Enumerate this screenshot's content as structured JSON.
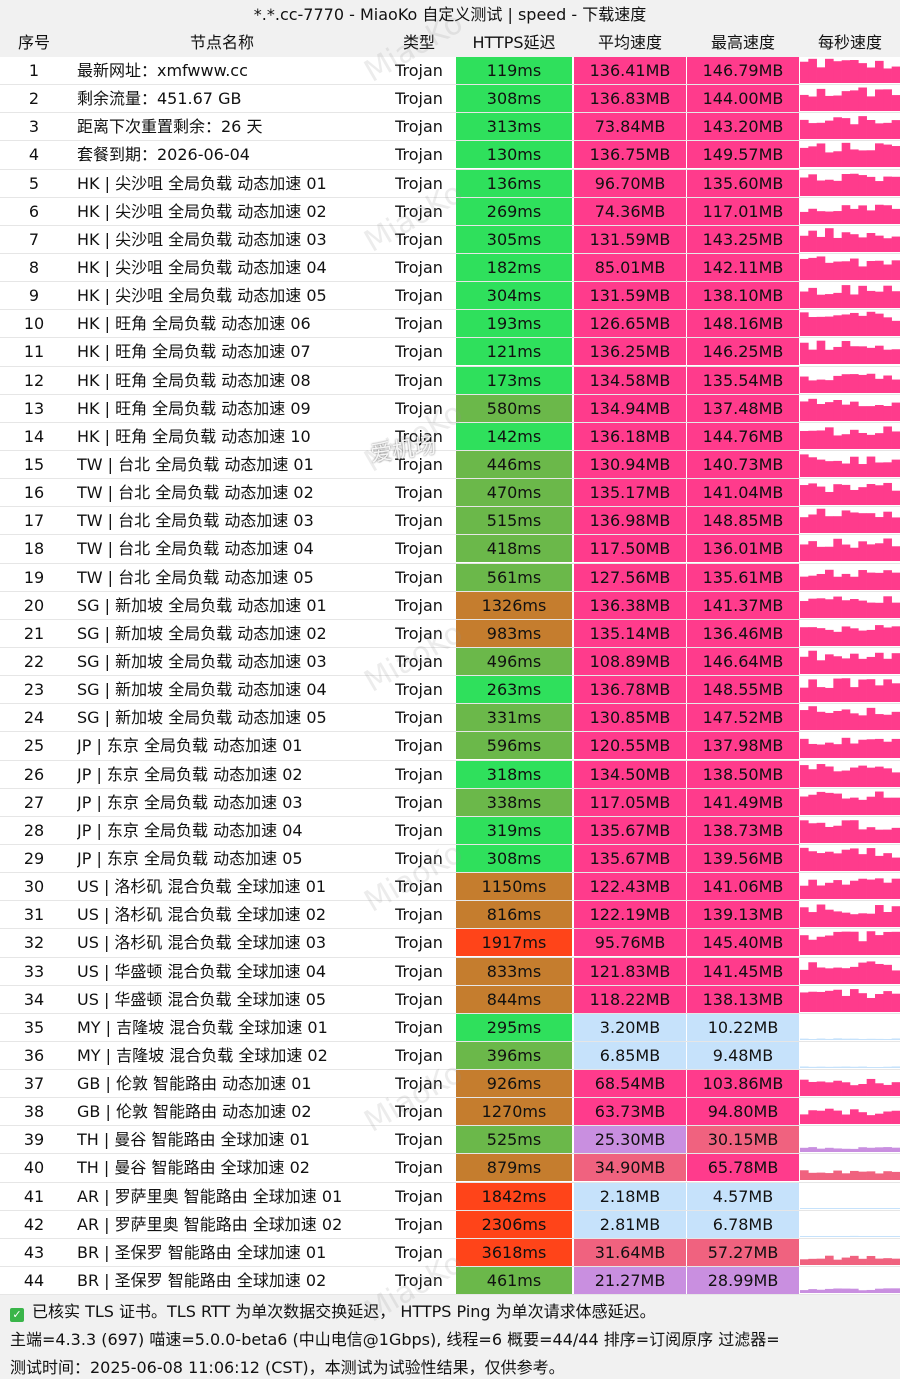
{
  "title": "*.*.cc-7770 - MiaoKo 自定义测试 | speed - 下载速度",
  "headers": {
    "idx": "序号",
    "name": "节点名称",
    "type": "类型",
    "latency": "HTTPS延迟",
    "avg": "平均速度",
    "max": "最高速度",
    "per_sec": "每秒速度"
  },
  "colors": {
    "speed_high": "#ff3b8c",
    "speed_mid": "#f0627f",
    "speed_low": "#c6e2fb",
    "speed_purple": "#c98fe0",
    "lat_good": "#2fe05c",
    "lat_mid": "#6bb84a",
    "lat_orange": "#c57d2e",
    "lat_bad": "#ff4419"
  },
  "rows": [
    {
      "idx": "1",
      "name": "最新网址：xmfwww.cc",
      "type": "Trojan",
      "latency": "119ms",
      "avg": "136.41MB",
      "max": "146.79MB"
    },
    {
      "idx": "2",
      "name": "剩余流量：451.67 GB",
      "type": "Trojan",
      "latency": "308ms",
      "avg": "136.83MB",
      "max": "144.00MB"
    },
    {
      "idx": "3",
      "name": "距离下次重置剩余：26 天",
      "type": "Trojan",
      "latency": "313ms",
      "avg": "73.84MB",
      "max": "143.20MB"
    },
    {
      "idx": "4",
      "name": "套餐到期：2026-06-04",
      "type": "Trojan",
      "latency": "130ms",
      "avg": "136.75MB",
      "max": "149.57MB"
    },
    {
      "idx": "5",
      "name": "HK | 尖沙咀 全局负载 动态加速 01",
      "type": "Trojan",
      "latency": "136ms",
      "avg": "96.70MB",
      "max": "135.60MB"
    },
    {
      "idx": "6",
      "name": "HK | 尖沙咀 全局负载 动态加速 02",
      "type": "Trojan",
      "latency": "269ms",
      "avg": "74.36MB",
      "max": "117.01MB"
    },
    {
      "idx": "7",
      "name": "HK | 尖沙咀 全局负载 动态加速 03",
      "type": "Trojan",
      "latency": "305ms",
      "avg": "131.59MB",
      "max": "143.25MB"
    },
    {
      "idx": "8",
      "name": "HK | 尖沙咀 全局负载 动态加速 04",
      "type": "Trojan",
      "latency": "182ms",
      "avg": "85.01MB",
      "max": "142.11MB"
    },
    {
      "idx": "9",
      "name": "HK | 尖沙咀 全局负载 动态加速 05",
      "type": "Trojan",
      "latency": "304ms",
      "avg": "131.59MB",
      "max": "138.10MB"
    },
    {
      "idx": "10",
      "name": "HK | 旺角 全局负载 动态加速 06",
      "type": "Trojan",
      "latency": "193ms",
      "avg": "126.65MB",
      "max": "148.16MB"
    },
    {
      "idx": "11",
      "name": "HK | 旺角 全局负载 动态加速 07",
      "type": "Trojan",
      "latency": "121ms",
      "avg": "136.25MB",
      "max": "146.25MB"
    },
    {
      "idx": "12",
      "name": "HK | 旺角 全局负载 动态加速 08",
      "type": "Trojan",
      "latency": "173ms",
      "avg": "134.58MB",
      "max": "135.54MB"
    },
    {
      "idx": "13",
      "name": "HK | 旺角 全局负载 动态加速 09",
      "type": "Trojan",
      "latency": "580ms",
      "avg": "134.94MB",
      "max": "137.48MB"
    },
    {
      "idx": "14",
      "name": "HK | 旺角 全局负载 动态加速 10",
      "type": "Trojan",
      "latency": "142ms",
      "avg": "136.18MB",
      "max": "144.76MB"
    },
    {
      "idx": "15",
      "name": "TW | 台北 全局负载 动态加速 01",
      "type": "Trojan",
      "latency": "446ms",
      "avg": "130.94MB",
      "max": "140.73MB"
    },
    {
      "idx": "16",
      "name": "TW | 台北 全局负载 动态加速 02",
      "type": "Trojan",
      "latency": "470ms",
      "avg": "135.17MB",
      "max": "141.04MB"
    },
    {
      "idx": "17",
      "name": "TW | 台北 全局负载 动态加速 03",
      "type": "Trojan",
      "latency": "515ms",
      "avg": "136.98MB",
      "max": "148.85MB"
    },
    {
      "idx": "18",
      "name": "TW | 台北 全局负载 动态加速 04",
      "type": "Trojan",
      "latency": "418ms",
      "avg": "117.50MB",
      "max": "136.01MB"
    },
    {
      "idx": "19",
      "name": "TW | 台北 全局负载 动态加速 05",
      "type": "Trojan",
      "latency": "561ms",
      "avg": "127.56MB",
      "max": "135.61MB"
    },
    {
      "idx": "20",
      "name": "SG | 新加坡 全局负载 动态加速 01",
      "type": "Trojan",
      "latency": "1326ms",
      "avg": "136.38MB",
      "max": "141.37MB"
    },
    {
      "idx": "21",
      "name": "SG | 新加坡 全局负载 动态加速 02",
      "type": "Trojan",
      "latency": "983ms",
      "avg": "135.14MB",
      "max": "136.46MB"
    },
    {
      "idx": "22",
      "name": "SG | 新加坡 全局负载 动态加速 03",
      "type": "Trojan",
      "latency": "496ms",
      "avg": "108.89MB",
      "max": "146.64MB"
    },
    {
      "idx": "23",
      "name": "SG | 新加坡 全局负载 动态加速 04",
      "type": "Trojan",
      "latency": "263ms",
      "avg": "136.78MB",
      "max": "148.55MB"
    },
    {
      "idx": "24",
      "name": "SG | 新加坡 全局负载 动态加速 05",
      "type": "Trojan",
      "latency": "331ms",
      "avg": "130.85MB",
      "max": "147.52MB"
    },
    {
      "idx": "25",
      "name": "JP | 东京 全局负载 动态加速 01",
      "type": "Trojan",
      "latency": "596ms",
      "avg": "120.55MB",
      "max": "137.98MB"
    },
    {
      "idx": "26",
      "name": "JP | 东京 全局负载 动态加速 02",
      "type": "Trojan",
      "latency": "318ms",
      "avg": "134.50MB",
      "max": "138.50MB"
    },
    {
      "idx": "27",
      "name": "JP | 东京 全局负载 动态加速 03",
      "type": "Trojan",
      "latency": "338ms",
      "avg": "117.05MB",
      "max": "141.49MB"
    },
    {
      "idx": "28",
      "name": "JP | 东京 全局负载 动态加速 04",
      "type": "Trojan",
      "latency": "319ms",
      "avg": "135.67MB",
      "max": "138.73MB"
    },
    {
      "idx": "29",
      "name": "JP | 东京 全局负载 动态加速 05",
      "type": "Trojan",
      "latency": "308ms",
      "avg": "135.67MB",
      "max": "139.56MB"
    },
    {
      "idx": "30",
      "name": "US | 洛杉矶 混合负载 全球加速 01",
      "type": "Trojan",
      "latency": "1150ms",
      "avg": "122.43MB",
      "max": "141.06MB"
    },
    {
      "idx": "31",
      "name": "US | 洛杉矶 混合负载 全球加速 02",
      "type": "Trojan",
      "latency": "816ms",
      "avg": "122.19MB",
      "max": "139.13MB"
    },
    {
      "idx": "32",
      "name": "US | 洛杉矶 混合负载 全球加速 03",
      "type": "Trojan",
      "latency": "1917ms",
      "avg": "95.76MB",
      "max": "145.40MB"
    },
    {
      "idx": "33",
      "name": "US | 华盛顿 混合负载 全球加速 04",
      "type": "Trojan",
      "latency": "833ms",
      "avg": "121.83MB",
      "max": "141.45MB"
    },
    {
      "idx": "34",
      "name": "US | 华盛顿 混合负载 全球加速 05",
      "type": "Trojan",
      "latency": "844ms",
      "avg": "118.22MB",
      "max": "138.13MB"
    },
    {
      "idx": "35",
      "name": "MY | 吉隆坡 混合负载 全球加速 01",
      "type": "Trojan",
      "latency": "295ms",
      "avg": "3.20MB",
      "max": "10.22MB"
    },
    {
      "idx": "36",
      "name": "MY | 吉隆坡 混合负载 全球加速 02",
      "type": "Trojan",
      "latency": "396ms",
      "avg": "6.85MB",
      "max": "9.48MB"
    },
    {
      "idx": "37",
      "name": "GB | 伦敦 智能路由 动态加速 01",
      "type": "Trojan",
      "latency": "926ms",
      "avg": "68.54MB",
      "max": "103.86MB"
    },
    {
      "idx": "38",
      "name": "GB | 伦敦 智能路由 动态加速 02",
      "type": "Trojan",
      "latency": "1270ms",
      "avg": "63.73MB",
      "max": "94.80MB"
    },
    {
      "idx": "39",
      "name": "TH | 曼谷 智能路由 全球加速 01",
      "type": "Trojan",
      "latency": "525ms",
      "avg": "25.30MB",
      "max": "30.15MB"
    },
    {
      "idx": "40",
      "name": "TH | 曼谷 智能路由 全球加速 02",
      "type": "Trojan",
      "latency": "879ms",
      "avg": "34.90MB",
      "max": "65.78MB"
    },
    {
      "idx": "41",
      "name": "AR | 罗萨里奥 智能路由 全球加速 01",
      "type": "Trojan",
      "latency": "1842ms",
      "avg": "2.18MB",
      "max": "4.57MB"
    },
    {
      "idx": "42",
      "name": "AR | 罗萨里奥 智能路由 全球加速 02",
      "type": "Trojan",
      "latency": "2306ms",
      "avg": "2.81MB",
      "max": "6.78MB"
    },
    {
      "idx": "43",
      "name": "BR | 圣保罗 智能路由 全球加速 01",
      "type": "Trojan",
      "latency": "3618ms",
      "avg": "31.64MB",
      "max": "57.27MB"
    },
    {
      "idx": "44",
      "name": "BR | 圣保罗 智能路由 全球加速 02",
      "type": "Trojan",
      "latency": "461ms",
      "avg": "21.27MB",
      "max": "28.99MB"
    }
  ],
  "footer": {
    "line1": "已核实 TLS 证书。TLS RTT 为单次数据交换延迟， HTTPS Ping 为单次请求体感延迟。",
    "line2": "主端=4.3.3 (697) 喵速=5.0.0-beta6 (中山电信@1Gbps), 线程=6 概要=44/44 排序=订阅原序 过滤器=",
    "line3": "测试时间：2025-06-08 11:06:12 (CST)，本测试为试验性结果，仅供参考。"
  },
  "watermark": "MiaoKo",
  "watermark2": "爱机场"
}
